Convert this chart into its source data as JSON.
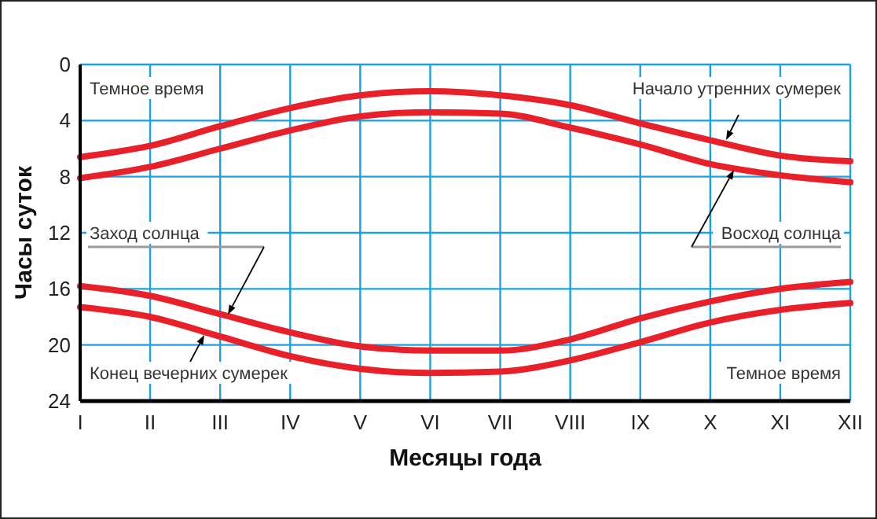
{
  "chart_data": {
    "type": "line",
    "xlabel": "Месяцы года",
    "ylabel": "Часы суток",
    "categories": [
      "I",
      "II",
      "III",
      "IV",
      "V",
      "VI",
      "VII",
      "VIII",
      "IX",
      "X",
      "XI",
      "XII"
    ],
    "ylim": [
      24,
      0
    ],
    "yticks": [
      0,
      4,
      8,
      12,
      16,
      20,
      24
    ],
    "grid": true,
    "series": [
      {
        "color": "#e8202a",
        "values": [
          6.6,
          5.8,
          4.4,
          3.1,
          2.2,
          1.9,
          2.2,
          2.9,
          4.2,
          5.4,
          6.5,
          6.9
        ]
      },
      {
        "color": "#e8202a",
        "values": [
          8.1,
          7.3,
          6.0,
          4.7,
          3.7,
          3.4,
          3.5,
          4.5,
          5.7,
          7.1,
          7.9,
          8.4
        ]
      },
      {
        "color": "#e8202a",
        "values": [
          15.8,
          16.5,
          17.8,
          19.1,
          20.1,
          20.4,
          20.4,
          19.6,
          18.1,
          16.9,
          16.0,
          15.5
        ]
      },
      {
        "color": "#e8202a",
        "values": [
          17.3,
          18.0,
          19.4,
          20.8,
          21.7,
          22.0,
          21.9,
          21.1,
          19.8,
          18.4,
          17.5,
          17.0
        ]
      }
    ],
    "annotations": [
      "Темное время",
      "Начало утренних сумерек",
      "Восход солнца",
      "Заход солнца",
      "Конец вечерних сумерек",
      "Темное время"
    ]
  }
}
